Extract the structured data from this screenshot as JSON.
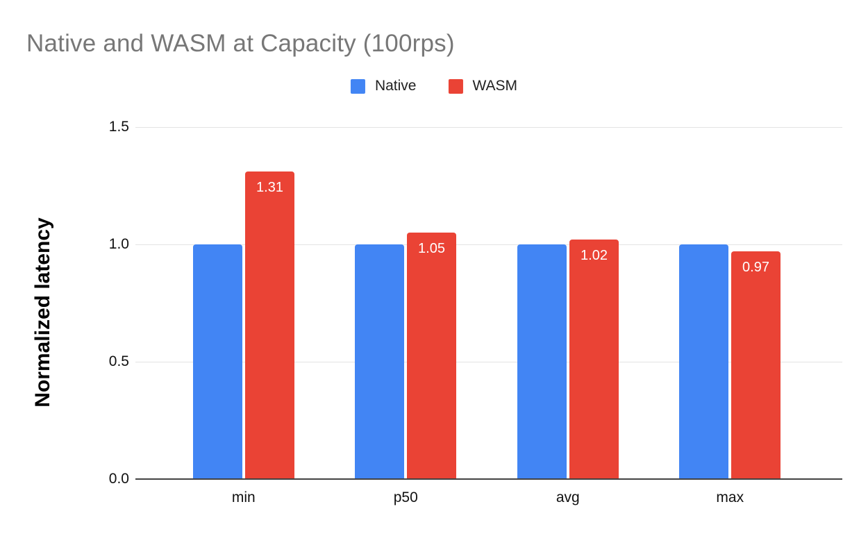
{
  "chart_data": {
    "type": "bar",
    "title": "Native and WASM at Capacity (100rps)",
    "ylabel": "Normalized latency",
    "xlabel": "",
    "categories": [
      "min",
      "p50",
      "avg",
      "max"
    ],
    "series": [
      {
        "name": "Native",
        "color": "#4285F4",
        "values": [
          1.0,
          1.0,
          1.0,
          1.0
        ],
        "data_labels": [
          "",
          "",
          "",
          ""
        ]
      },
      {
        "name": "WASM",
        "color": "#EA4335",
        "values": [
          1.31,
          1.05,
          1.02,
          0.97
        ],
        "data_labels": [
          "1.31",
          "1.05",
          "1.02",
          "0.97"
        ]
      }
    ],
    "ylim": [
      0,
      1.5
    ],
    "yticks": [
      {
        "value": 0,
        "label": "0.0"
      },
      {
        "value": 0.5,
        "label": "0.5"
      },
      {
        "value": 1.0,
        "label": "1.0"
      },
      {
        "value": 1.5,
        "label": "1.5"
      }
    ],
    "grid": true,
    "legend_position": "top",
    "data_label_color": "#ffffff"
  },
  "colors": {
    "background": "#ffffff",
    "title_text": "#777777",
    "axis_text": "#111111",
    "gridline": "#e3e3e3",
    "baseline": "#424242"
  }
}
